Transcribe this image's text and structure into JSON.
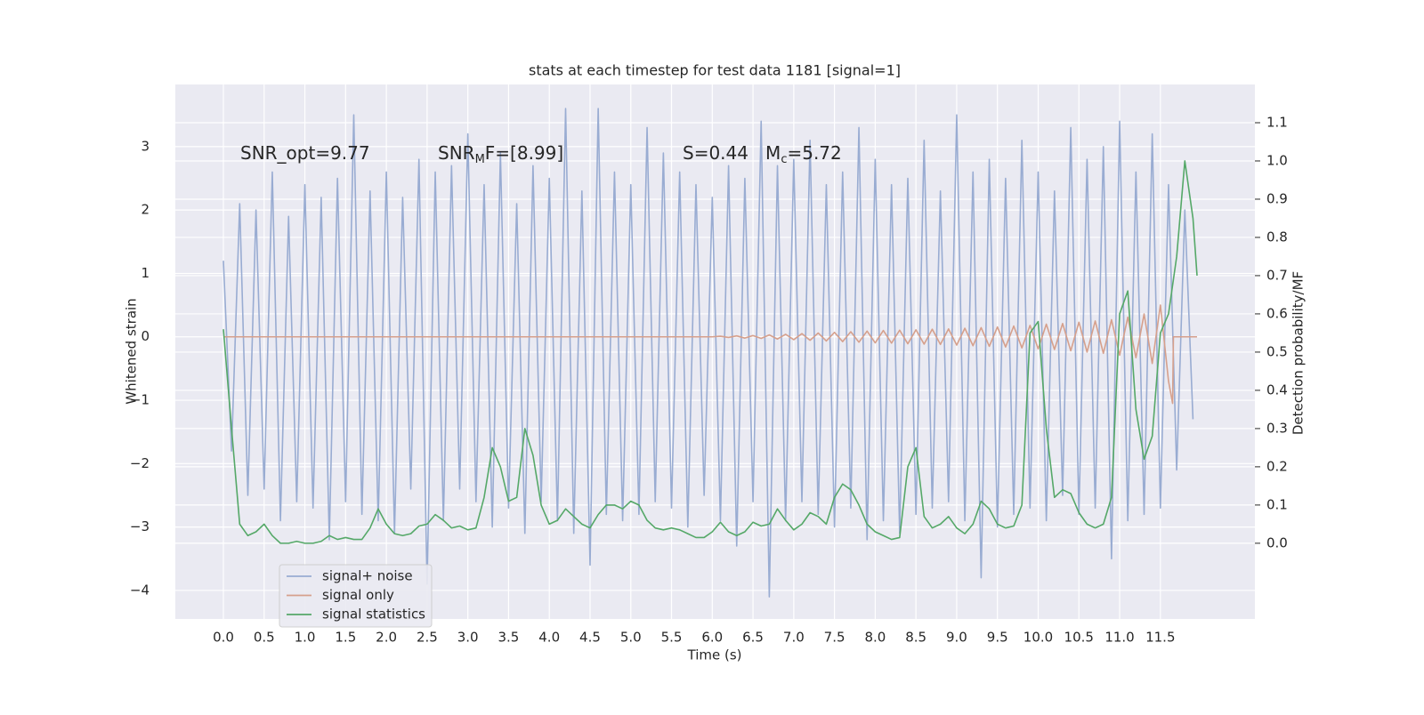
{
  "chart_data": {
    "type": "line",
    "title": "stats at each timestep for test data 1181 [signal=1]",
    "xlabel": "Time (s)",
    "ylabel": "Whitened strain",
    "y2label": "Detection probability/MF",
    "xlim": [
      -0.59,
      12.66
    ],
    "ylim": [
      -4.45,
      3.98
    ],
    "y2lim": [
      -0.198,
      1.2
    ],
    "xticks": [
      {
        "value": 0,
        "label": "0.0"
      },
      {
        "value": 0.5,
        "label": "0.5"
      },
      {
        "value": 1,
        "label": "1.0"
      },
      {
        "value": 1.5,
        "label": "1.5"
      },
      {
        "value": 2,
        "label": "2.0"
      },
      {
        "value": 2.5,
        "label": "2.5"
      },
      {
        "value": 3,
        "label": "3.0"
      },
      {
        "value": 3.5,
        "label": "3.5"
      },
      {
        "value": 4,
        "label": "4.0"
      },
      {
        "value": 4.5,
        "label": "4.5"
      },
      {
        "value": 5,
        "label": "5.0"
      },
      {
        "value": 5.5,
        "label": "5.5"
      },
      {
        "value": 6,
        "label": "6.0"
      },
      {
        "value": 6.5,
        "label": "6.5"
      },
      {
        "value": 7,
        "label": "7.0"
      },
      {
        "value": 7.5,
        "label": "7.5"
      },
      {
        "value": 8,
        "label": "8.0"
      },
      {
        "value": 8.5,
        "label": "8.5"
      },
      {
        "value": 9,
        "label": "9.0"
      },
      {
        "value": 9.5,
        "label": "9.5"
      },
      {
        "value": 10,
        "label": "10.0"
      },
      {
        "value": 10.5,
        "label": "10.5"
      },
      {
        "value": 11,
        "label": "11.0"
      },
      {
        "value": 11.5,
        "label": "11.5"
      }
    ],
    "yticks": [
      {
        "value": -4,
        "label": "−4"
      },
      {
        "value": -3,
        "label": "−3"
      },
      {
        "value": -2,
        "label": "−2"
      },
      {
        "value": -1,
        "label": "−1"
      },
      0,
      1,
      2,
      3
    ],
    "y2ticks": [
      {
        "value": 0,
        "label": "0.0"
      },
      {
        "value": 0.1,
        "label": "0.1"
      },
      {
        "value": 0.2,
        "label": "0.2"
      },
      {
        "value": 0.3,
        "label": "0.3"
      },
      {
        "value": 0.4,
        "label": "0.4"
      },
      {
        "value": 0.5,
        "label": "0.5"
      },
      {
        "value": 0.6,
        "label": "0.6"
      },
      {
        "value": 0.7,
        "label": "0.7"
      },
      {
        "value": 0.8,
        "label": "0.8"
      },
      {
        "value": 0.9,
        "label": "0.9"
      },
      {
        "value": 1,
        "label": "1.0"
      },
      {
        "value": 1.1,
        "label": "1.1"
      }
    ],
    "grid": true,
    "legend": "lower left",
    "annotations": [
      {
        "main": "SNR_opt=9.77"
      },
      {
        "main": "SNR",
        "sub": "M",
        "rest": "F=[8.99]"
      },
      {
        "main": "S=0.44   M",
        "sub": "c",
        "rest": "=5.72"
      }
    ],
    "series": [
      {
        "name": "signal+ noise",
        "color": "#99acd2",
        "x": [
          0,
          0.1,
          0.2,
          0.3,
          0.4,
          0.5,
          0.6,
          0.7,
          0.8,
          0.9,
          1,
          1.1,
          1.2,
          1.3,
          1.4,
          1.5,
          1.6,
          1.7,
          1.8,
          1.9,
          2,
          2.1,
          2.2,
          2.3,
          2.4,
          2.5,
          2.6,
          2.7,
          2.8,
          2.9,
          3,
          3.1,
          3.2,
          3.3,
          3.4,
          3.5,
          3.6,
          3.7,
          3.8,
          3.9,
          4,
          4.1,
          4.2,
          4.3,
          4.4,
          4.5,
          4.6,
          4.7,
          4.8,
          4.9,
          5,
          5.1,
          5.2,
          5.3,
          5.4,
          5.5,
          5.6,
          5.7,
          5.8,
          5.9,
          6,
          6.1,
          6.2,
          6.3,
          6.4,
          6.5,
          6.6,
          6.7,
          6.8,
          6.9,
          7,
          7.1,
          7.2,
          7.3,
          7.4,
          7.5,
          7.6,
          7.7,
          7.8,
          7.9,
          8,
          8.1,
          8.2,
          8.3,
          8.4,
          8.5,
          8.6,
          8.7,
          8.8,
          8.9,
          9,
          9.1,
          9.2,
          9.3,
          9.4,
          9.5,
          9.6,
          9.7,
          9.8,
          9.9,
          10,
          10.1,
          10.2,
          10.3,
          10.4,
          10.5,
          10.6,
          10.7,
          10.8,
          10.9,
          11,
          11.1,
          11.2,
          11.3,
          11.4,
          11.5,
          11.6,
          11.7,
          11.8,
          11.9
        ],
        "values": [
          1.2,
          -1.8,
          2.1,
          -2.5,
          2.0,
          -2.4,
          2.6,
          -2.9,
          1.9,
          -2.6,
          2.4,
          -2.7,
          2.2,
          -3.2,
          2.5,
          -2.6,
          3.5,
          -2.8,
          2.3,
          -2.9,
          2.6,
          -3.1,
          2.2,
          -2.4,
          2.8,
          -3.9,
          2.6,
          -2.9,
          2.7,
          -2.4,
          3.2,
          -2.6,
          2.4,
          -3.0,
          2.9,
          -2.7,
          2.1,
          -3.1,
          2.7,
          -2.6,
          2.5,
          -2.9,
          3.6,
          -3.1,
          2.3,
          -3.6,
          3.6,
          -2.8,
          2.6,
          -2.9,
          2.4,
          -2.8,
          3.3,
          -2.6,
          2.9,
          -2.7,
          2.6,
          -3.0,
          2.4,
          -2.5,
          2.2,
          -2.9,
          2.7,
          -3.3,
          2.5,
          -2.6,
          3.4,
          -4.1,
          2.7,
          -2.9,
          2.8,
          -2.6,
          3.1,
          -2.8,
          2.4,
          -3.0,
          2.6,
          -2.7,
          3.3,
          -3.2,
          2.8,
          -2.9,
          2.4,
          -3.1,
          2.5,
          -2.8,
          3.1,
          -2.7,
          2.3,
          -2.6,
          3.5,
          -2.9,
          2.6,
          -3.8,
          2.8,
          -3.0,
          2.5,
          -2.8,
          3.1,
          -2.7,
          2.6,
          -2.9,
          2.3,
          -2.5,
          3.3,
          -2.8,
          2.8,
          -2.7,
          3.0,
          -3.5,
          3.4,
          -2.9,
          2.6,
          -2.8,
          3.2,
          -2.7,
          2.4,
          -2.1,
          2.0,
          -1.3
        ]
      },
      {
        "name": "signal only",
        "color": "#d6a08c",
        "x": [
          0,
          6,
          6.1,
          6.2,
          6.3,
          6.4,
          6.5,
          6.6,
          6.7,
          6.8,
          6.9,
          7,
          7.1,
          7.2,
          7.3,
          7.4,
          7.5,
          7.6,
          7.7,
          7.8,
          7.9,
          8,
          8.1,
          8.2,
          8.3,
          8.4,
          8.5,
          8.6,
          8.7,
          8.8,
          8.9,
          9,
          9.1,
          9.2,
          9.3,
          9.4,
          9.5,
          9.6,
          9.7,
          9.8,
          9.9,
          10,
          10.1,
          10.2,
          10.3,
          10.4,
          10.5,
          10.6,
          10.7,
          10.8,
          10.9,
          11,
          11.1,
          11.2,
          11.3,
          11.4,
          11.5,
          11.6,
          11.65,
          11.66,
          11.95
        ],
        "values": [
          0,
          0,
          0.01,
          -0.01,
          0.015,
          -0.02,
          0.02,
          -0.025,
          0.03,
          -0.035,
          0.04,
          -0.045,
          0.05,
          -0.055,
          0.06,
          -0.065,
          0.07,
          -0.075,
          0.08,
          -0.085,
          0.09,
          -0.095,
          0.1,
          -0.1,
          0.105,
          -0.11,
          0.11,
          -0.115,
          0.12,
          -0.12,
          0.125,
          -0.13,
          0.135,
          -0.14,
          0.145,
          -0.15,
          0.155,
          -0.16,
          0.17,
          -0.175,
          0.18,
          -0.19,
          0.2,
          -0.2,
          0.21,
          -0.22,
          0.23,
          -0.24,
          0.25,
          -0.26,
          0.27,
          -0.29,
          0.31,
          -0.33,
          0.36,
          -0.42,
          0.5,
          -0.7,
          -1.05,
          0,
          0
        ]
      },
      {
        "name": "signal statistics",
        "color": "#55a868",
        "axis": "y2",
        "x": [
          0,
          0.1,
          0.2,
          0.3,
          0.4,
          0.5,
          0.6,
          0.7,
          0.8,
          0.9,
          1,
          1.1,
          1.2,
          1.3,
          1.4,
          1.5,
          1.6,
          1.7,
          1.8,
          1.9,
          2,
          2.1,
          2.2,
          2.3,
          2.4,
          2.5,
          2.6,
          2.7,
          2.8,
          2.9,
          3,
          3.1,
          3.2,
          3.3,
          3.4,
          3.5,
          3.6,
          3.7,
          3.8,
          3.9,
          4,
          4.1,
          4.2,
          4.3,
          4.4,
          4.5,
          4.6,
          4.7,
          4.8,
          4.9,
          5,
          5.1,
          5.2,
          5.3,
          5.4,
          5.5,
          5.6,
          5.7,
          5.8,
          5.9,
          6,
          6.1,
          6.2,
          6.3,
          6.4,
          6.5,
          6.6,
          6.7,
          6.8,
          6.9,
          7,
          7.1,
          7.2,
          7.3,
          7.4,
          7.5,
          7.6,
          7.7,
          7.8,
          7.9,
          8,
          8.1,
          8.2,
          8.3,
          8.4,
          8.5,
          8.6,
          8.7,
          8.8,
          8.9,
          9,
          9.1,
          9.2,
          9.3,
          9.4,
          9.5,
          9.6,
          9.7,
          9.8,
          9.9,
          10,
          10.1,
          10.2,
          10.3,
          10.4,
          10.5,
          10.6,
          10.7,
          10.8,
          10.9,
          11,
          11.1,
          11.2,
          11.3,
          11.4,
          11.5,
          11.6,
          11.7,
          11.8,
          11.9,
          11.95
        ],
        "values": [
          0.56,
          0.3,
          0.05,
          0.02,
          0.03,
          0.05,
          0.02,
          0.0,
          0.0,
          0.005,
          0.0,
          0.0,
          0.005,
          0.02,
          0.01,
          0.015,
          0.01,
          0.01,
          0.04,
          0.09,
          0.05,
          0.025,
          0.02,
          0.025,
          0.045,
          0.05,
          0.075,
          0.06,
          0.04,
          0.045,
          0.035,
          0.04,
          0.12,
          0.25,
          0.2,
          0.11,
          0.12,
          0.3,
          0.23,
          0.1,
          0.05,
          0.06,
          0.09,
          0.07,
          0.05,
          0.04,
          0.075,
          0.1,
          0.1,
          0.09,
          0.11,
          0.1,
          0.06,
          0.04,
          0.035,
          0.04,
          0.035,
          0.025,
          0.015,
          0.015,
          0.03,
          0.055,
          0.03,
          0.02,
          0.03,
          0.055,
          0.045,
          0.05,
          0.09,
          0.06,
          0.035,
          0.05,
          0.08,
          0.07,
          0.05,
          0.12,
          0.155,
          0.14,
          0.1,
          0.05,
          0.03,
          0.02,
          0.01,
          0.015,
          0.2,
          0.25,
          0.07,
          0.04,
          0.05,
          0.07,
          0.04,
          0.025,
          0.05,
          0.11,
          0.09,
          0.05,
          0.04,
          0.045,
          0.1,
          0.55,
          0.58,
          0.3,
          0.12,
          0.14,
          0.13,
          0.08,
          0.05,
          0.04,
          0.05,
          0.12,
          0.6,
          0.66,
          0.35,
          0.22,
          0.28,
          0.55,
          0.6,
          0.75,
          1.0,
          0.85,
          0.7
        ]
      }
    ]
  }
}
